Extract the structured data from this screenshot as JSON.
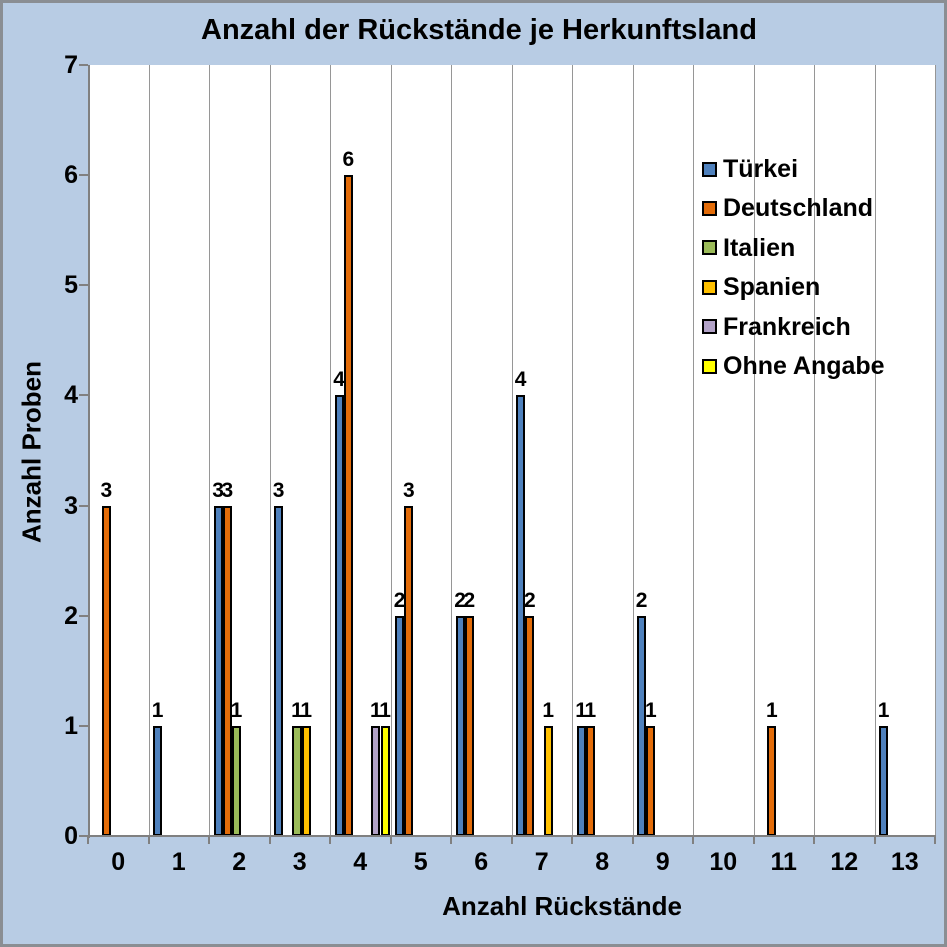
{
  "chart_data": {
    "type": "bar",
    "title": "Anzahl der Rückstände je Herkunftsland",
    "xlabel": "Anzahl Rückstände",
    "ylabel": "Anzahl Proben",
    "categories": [
      "0",
      "1",
      "2",
      "3",
      "4",
      "5",
      "6",
      "7",
      "8",
      "9",
      "10",
      "11",
      "12",
      "13"
    ],
    "ylim": [
      0,
      7
    ],
    "yticks": [
      0,
      1,
      2,
      3,
      4,
      5,
      6,
      7
    ],
    "grid": "vertical-category-boundary-lines",
    "legend_position": "inside-top-right",
    "data_labels": "value shown above every non-zero bar",
    "series": [
      {
        "name": "Türkei",
        "color": "#4F81BD",
        "values": [
          0,
          1,
          3,
          3,
          4,
          2,
          2,
          4,
          1,
          2,
          0,
          0,
          0,
          1
        ]
      },
      {
        "name": "Deutschland",
        "color": "#E36C09",
        "values": [
          3,
          0,
          3,
          0,
          6,
          3,
          2,
          2,
          1,
          1,
          0,
          1,
          0,
          0
        ]
      },
      {
        "name": "Italien",
        "color": "#9BBB59",
        "values": [
          0,
          0,
          1,
          1,
          0,
          0,
          0,
          0,
          0,
          0,
          0,
          0,
          0,
          0
        ]
      },
      {
        "name": "Spanien",
        "color": "#FFC000",
        "values": [
          0,
          0,
          0,
          1,
          0,
          0,
          0,
          1,
          0,
          0,
          0,
          0,
          0,
          0
        ]
      },
      {
        "name": "Frankreich",
        "color": "#B2A2C7",
        "values": [
          0,
          0,
          0,
          0,
          1,
          0,
          0,
          0,
          0,
          0,
          0,
          0,
          0,
          0
        ]
      },
      {
        "name": "Ohne Angabe",
        "color": "#FFFF00",
        "values": [
          0,
          0,
          0,
          0,
          1,
          0,
          0,
          0,
          0,
          0,
          0,
          0,
          0,
          0
        ]
      }
    ]
  },
  "colors": {
    "background": "#B8CCE4",
    "plot_background": "#FFFFFF",
    "gridline": "#969696",
    "axis_line": "#808080",
    "bar_border": "#000000",
    "frame_border": "#8A8E93",
    "text": "#000000"
  }
}
